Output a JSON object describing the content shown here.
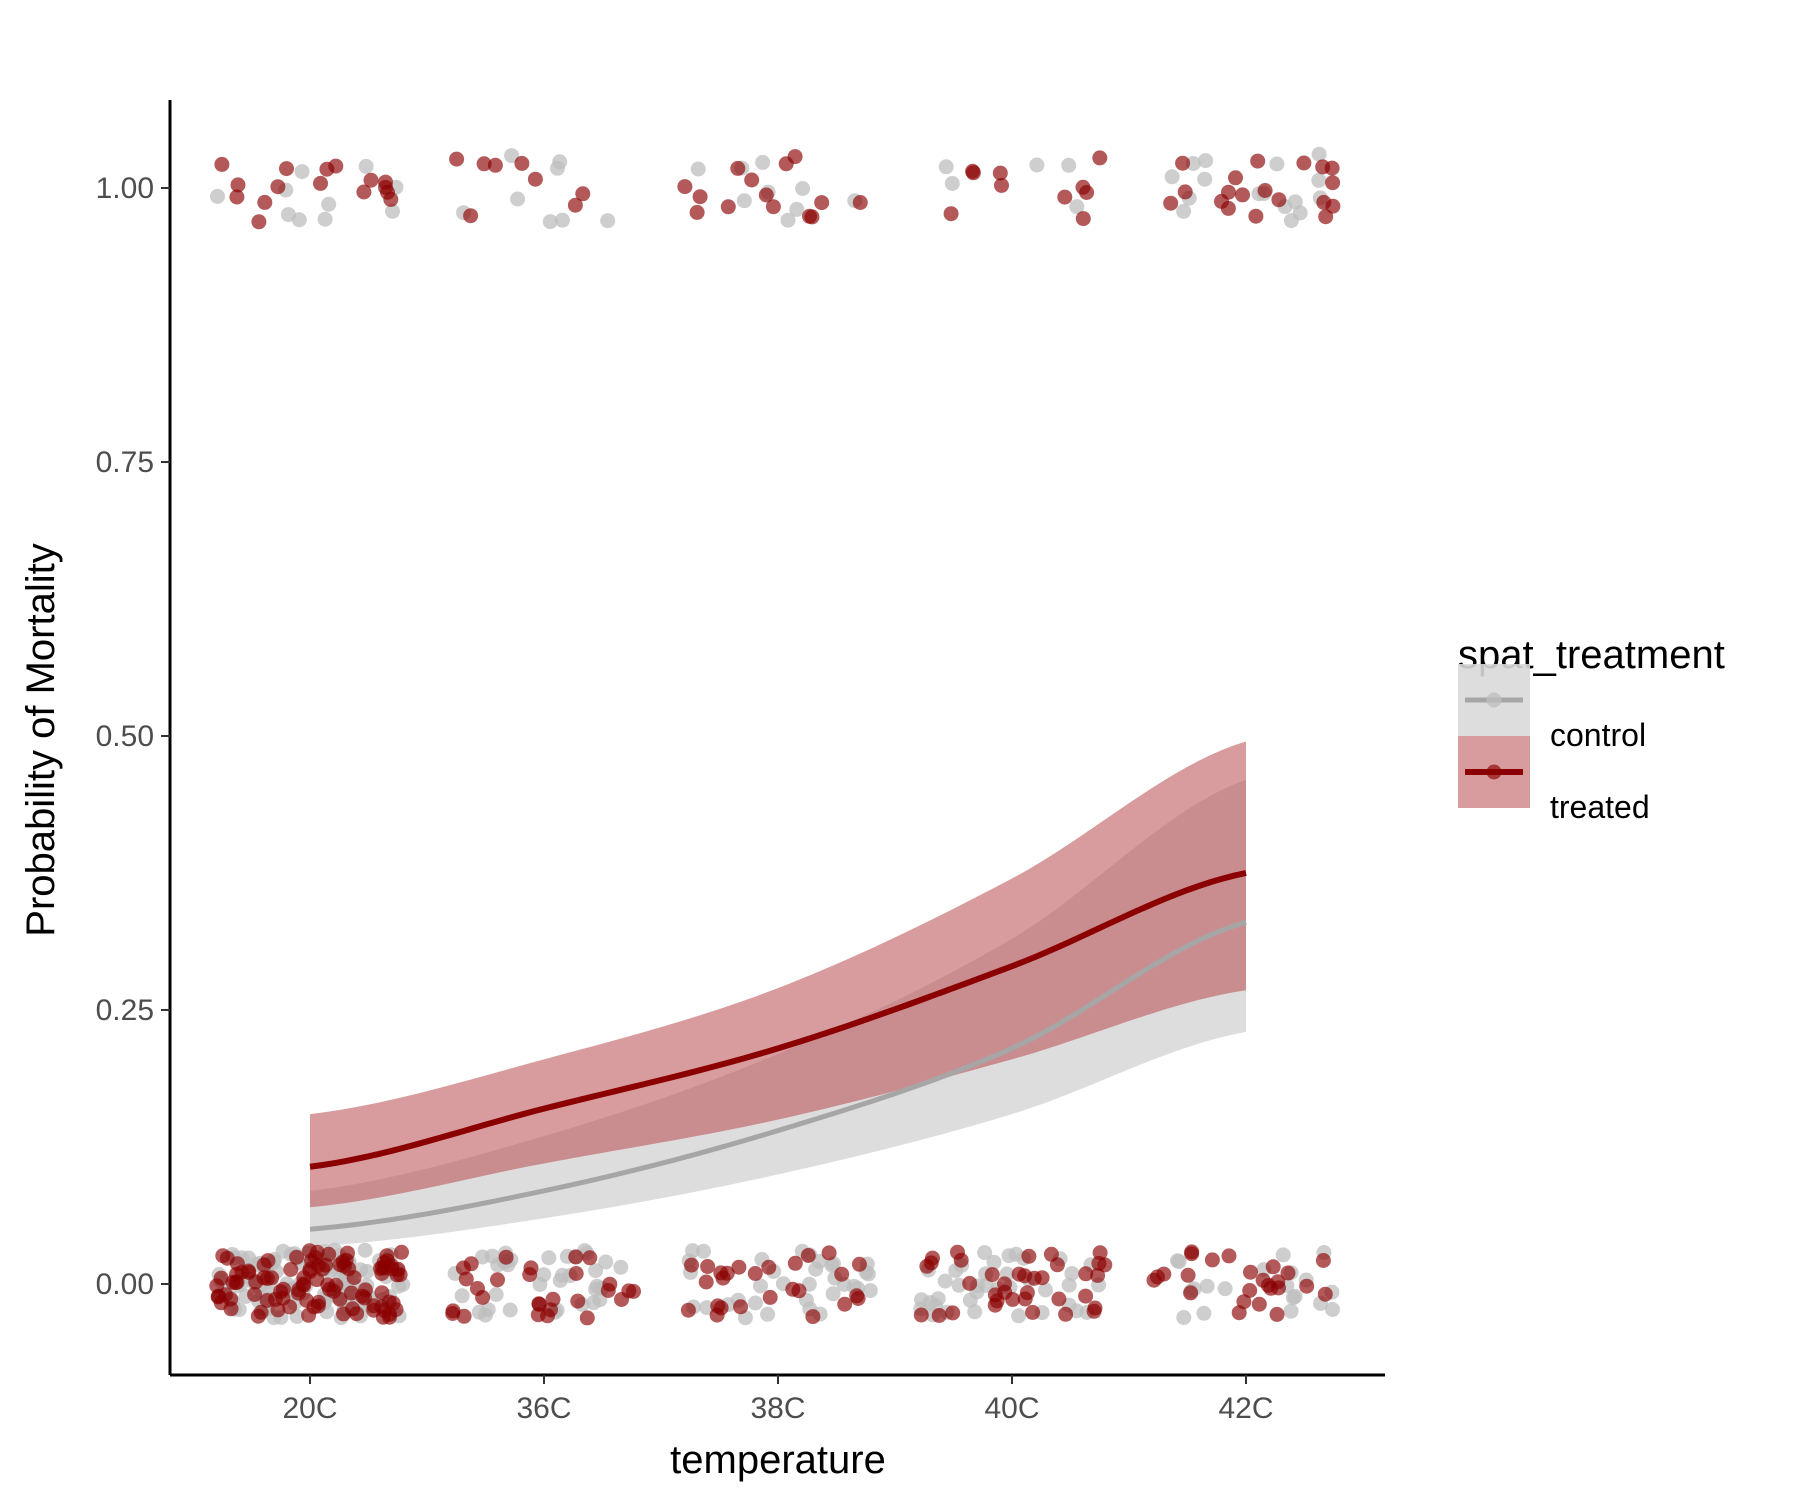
{
  "chart_data": {
    "type": "line",
    "xlabel": "temperature",
    "ylabel": "Probability of Mortality",
    "categories": [
      "20C",
      "36C",
      "38C",
      "40C",
      "42C"
    ],
    "ylim": [
      -0.08,
      1.08
    ],
    "yticks": [
      0.0,
      0.25,
      0.5,
      0.75,
      1.0
    ],
    "ytick_labels": [
      "0.00",
      "0.25",
      "0.50",
      "0.75",
      "1.00"
    ],
    "grid": false,
    "legend": {
      "title": "spat_treatment",
      "position": "right",
      "entries": [
        "control",
        "treated"
      ]
    },
    "colors": {
      "control_line": "#a6a6a6",
      "control_point": "#bdbdbd",
      "control_ribbon": "#d9d9d9",
      "treated_line": "#8b0000",
      "treated_point": "#8b0000",
      "treated_ribbon": "#b94a4f"
    },
    "series": [
      {
        "name": "control",
        "fit": [
          0.05,
          0.085,
          0.14,
          0.215,
          0.33
        ],
        "lower": [
          0.034,
          0.06,
          0.1,
          0.155,
          0.23
        ],
        "upper": [
          0.085,
          0.135,
          0.21,
          0.315,
          0.46
        ],
        "points_at_0": [
          110,
          35,
          34,
          38,
          20
        ],
        "points_at_1": [
          10,
          8,
          9,
          5,
          16
        ]
      },
      {
        "name": "treated",
        "fit": [
          0.107,
          0.16,
          0.215,
          0.29,
          0.375
        ],
        "lower": [
          0.07,
          0.11,
          0.15,
          0.205,
          0.268
        ],
        "upper": [
          0.155,
          0.205,
          0.27,
          0.37,
          0.495
        ],
        "points_at_0": [
          100,
          28,
          26,
          36,
          25
        ],
        "points_at_1": [
          16,
          8,
          14,
          10,
          19
        ]
      }
    ]
  }
}
